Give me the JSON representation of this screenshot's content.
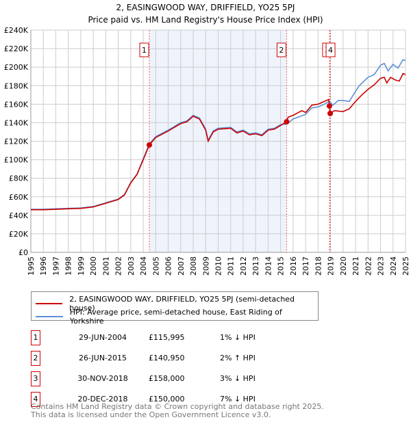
{
  "chart_data": {
    "type": "line",
    "title": "2, EASINGWOOD WAY, DRIFFIELD, YO25 5PJ",
    "subtitle": "Price paid vs. HM Land Registry's House Price Index (HPI)",
    "xlim": [
      1995,
      2025
    ],
    "ylim": [
      0,
      240000
    ],
    "yticks": [
      "£0",
      "£20K",
      "£40K",
      "£60K",
      "£80K",
      "£100K",
      "£120K",
      "£140K",
      "£160K",
      "£180K",
      "£200K",
      "£220K",
      "£240K"
    ],
    "xticks": [
      "1995",
      "1996",
      "1997",
      "1998",
      "1999",
      "2000",
      "2001",
      "2002",
      "2003",
      "2004",
      "2005",
      "2006",
      "2007",
      "2008",
      "2009",
      "2010",
      "2011",
      "2012",
      "2013",
      "2014",
      "2015",
      "2016",
      "2017",
      "2018",
      "2019",
      "2020",
      "2021",
      "2022",
      "2023",
      "2024",
      "2025"
    ],
    "grid": true,
    "series": [
      {
        "name": "2, EASINGWOOD WAY, DRIFFIELD, YO25 5PJ (semi-detached house)",
        "color": "#cc0000",
        "points": [
          [
            1995,
            46000
          ],
          [
            1996,
            46000
          ],
          [
            1997,
            46500
          ],
          [
            1998,
            47000
          ],
          [
            1999,
            47500
          ],
          [
            2000,
            49000
          ],
          [
            2001,
            53000
          ],
          [
            2002,
            57000
          ],
          [
            2002.5,
            62000
          ],
          [
            2003,
            75000
          ],
          [
            2003.5,
            84000
          ],
          [
            2004,
            100000
          ],
          [
            2004.49,
            115995
          ],
          [
            2005,
            124000
          ],
          [
            2006,
            131000
          ],
          [
            2007,
            139000
          ],
          [
            2007.5,
            141000
          ],
          [
            2008,
            147000
          ],
          [
            2008.5,
            144000
          ],
          [
            2009,
            132000
          ],
          [
            2009.2,
            120000
          ],
          [
            2009.6,
            130000
          ],
          [
            2010,
            133000
          ],
          [
            2011,
            134000
          ],
          [
            2011.5,
            129000
          ],
          [
            2012,
            131000
          ],
          [
            2012.5,
            127000
          ],
          [
            2013,
            128000
          ],
          [
            2013.5,
            126000
          ],
          [
            2014,
            132000
          ],
          [
            2014.5,
            133000
          ],
          [
            2015,
            137000
          ],
          [
            2015.48,
            140950
          ],
          [
            2015.6,
            146000
          ],
          [
            2016,
            148000
          ],
          [
            2016.7,
            153000
          ],
          [
            2017,
            151000
          ],
          [
            2017.5,
            159000
          ],
          [
            2018,
            160000
          ],
          [
            2018.5,
            163000
          ],
          [
            2018.85,
            165000
          ],
          [
            2018.91,
            158000
          ],
          [
            2018.97,
            150000
          ],
          [
            2019.3,
            153000
          ],
          [
            2020,
            152000
          ],
          [
            2020.5,
            155000
          ],
          [
            2021,
            163000
          ],
          [
            2021.5,
            170000
          ],
          [
            2022,
            176000
          ],
          [
            2022.5,
            181000
          ],
          [
            2023,
            188000
          ],
          [
            2023.3,
            189000
          ],
          [
            2023.5,
            183000
          ],
          [
            2023.8,
            189000
          ],
          [
            2024.2,
            186000
          ],
          [
            2024.5,
            185000
          ],
          [
            2024.8,
            193000
          ],
          [
            2025,
            192000
          ]
        ]
      },
      {
        "name": "HPI: Average price, semi-detached house, East Riding of Yorkshire",
        "color": "#5b8fd6",
        "points": [
          [
            1995,
            46500
          ],
          [
            1996,
            46500
          ],
          [
            1997,
            47000
          ],
          [
            1998,
            47500
          ],
          [
            1999,
            48000
          ],
          [
            2000,
            49500
          ],
          [
            2001,
            53500
          ],
          [
            2002,
            57500
          ],
          [
            2002.5,
            62500
          ],
          [
            2003,
            75500
          ],
          [
            2003.5,
            84500
          ],
          [
            2004,
            101000
          ],
          [
            2004.49,
            117000
          ],
          [
            2005,
            125000
          ],
          [
            2006,
            132000
          ],
          [
            2007,
            140000
          ],
          [
            2007.5,
            142000
          ],
          [
            2008,
            148000
          ],
          [
            2008.5,
            145000
          ],
          [
            2009,
            133000
          ],
          [
            2009.2,
            121000
          ],
          [
            2009.6,
            131000
          ],
          [
            2010,
            134000
          ],
          [
            2011,
            135000
          ],
          [
            2011.5,
            130000
          ],
          [
            2012,
            132000
          ],
          [
            2012.5,
            128000
          ],
          [
            2013,
            129000
          ],
          [
            2013.5,
            127000
          ],
          [
            2014,
            133000
          ],
          [
            2014.5,
            134000
          ],
          [
            2015,
            138000
          ],
          [
            2015.48,
            138500
          ],
          [
            2016,
            144000
          ],
          [
            2017,
            149000
          ],
          [
            2017.5,
            156000
          ],
          [
            2018,
            157000
          ],
          [
            2018.5,
            160000
          ],
          [
            2018.9,
            163000
          ],
          [
            2019.2,
            159000
          ],
          [
            2019.6,
            164000
          ],
          [
            2020,
            164000
          ],
          [
            2020.5,
            163000
          ],
          [
            2021,
            174000
          ],
          [
            2021.3,
            180000
          ],
          [
            2022,
            189000
          ],
          [
            2022.5,
            192000
          ],
          [
            2023,
            202000
          ],
          [
            2023.3,
            204000
          ],
          [
            2023.6,
            196000
          ],
          [
            2024,
            203000
          ],
          [
            2024.4,
            199000
          ],
          [
            2024.8,
            208000
          ],
          [
            2025,
            207000
          ]
        ]
      }
    ],
    "sales": [
      {
        "label": "1",
        "date": "29-JUN-2004",
        "x": 2004.49,
        "price": "£115,995",
        "value": 115995,
        "hpi": "1% ↓ HPI"
      },
      {
        "label": "2",
        "date": "26-JUN-2015",
        "x": 2015.48,
        "price": "£140,950",
        "value": 140950,
        "hpi": "2% ↑ HPI"
      },
      {
        "label": "3",
        "date": "30-NOV-2018",
        "x": 2018.91,
        "price": "£158,000",
        "value": 158000,
        "hpi": "3% ↓ HPI"
      },
      {
        "label": "4",
        "date": "20-DEC-2018",
        "x": 2018.97,
        "price": "£150,000",
        "value": 150000,
        "hpi": "7% ↓ HPI"
      }
    ],
    "legend_placement": "below"
  },
  "footer": {
    "line1": "Contains HM Land Registry data © Crown copyright and database right 2025.",
    "line2": "This data is licensed under the Open Government Licence v3.0."
  }
}
